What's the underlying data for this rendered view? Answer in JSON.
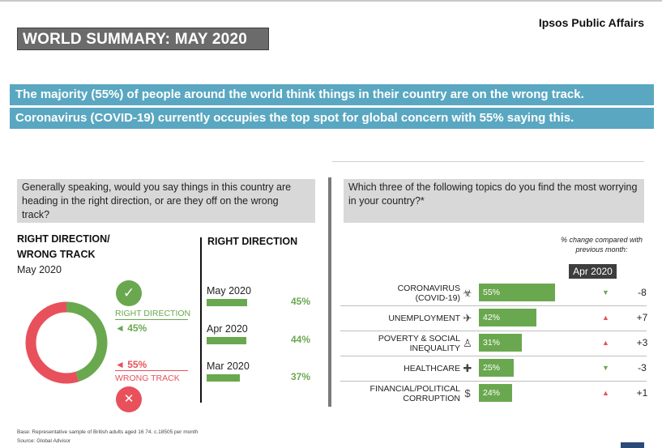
{
  "header": {
    "brand": "Ipsos Public Affairs",
    "title": "WORLD SUMMARY: MAY 2020"
  },
  "banners": {
    "line1": "The majority (55%) of people around the world think things in their country are on the wrong track.",
    "line2": "Coronavirus (COVID-19) currently occupies the top spot for global concern with 55% saying this."
  },
  "left_panel": {
    "question": "Generally speaking, would you say things in this country are heading in the right direction, or are they off on the wrong track?",
    "heading_line1": "RIGHT DIRECTION/",
    "heading_line2": "WRONG TRACK",
    "period": "May 2020",
    "right_direction_label": "RIGHT DIRECTION",
    "right_direction_value": "◄ 45%",
    "wrong_track_label": "WRONG TRACK",
    "wrong_track_value": "◄ 55%",
    "check_glyph": "✓",
    "x_glyph": "✕"
  },
  "trend": {
    "heading": "RIGHT DIRECTION",
    "rows": [
      {
        "month": "May 2020",
        "value": "45%"
      },
      {
        "month": "Apr 2020",
        "value": "44%"
      },
      {
        "month": "Mar 2020",
        "value": "37%"
      }
    ]
  },
  "right_panel": {
    "question": "Which three of the following topics do you find the most worrying in your country?*",
    "note": "% change compared with previous month:",
    "compare_label": "Apr 2020",
    "topics": [
      {
        "label": "CORONAVIRUS (COVID-19)",
        "icon": "biohazard-icon",
        "icon_glyph": "☣",
        "value": "55%",
        "direction": "down",
        "arrow": "▼",
        "change": "-8"
      },
      {
        "label": "UNEMPLOYMENT",
        "icon": "briefcase-icon",
        "icon_glyph": "✈",
        "value": "42%",
        "direction": "up",
        "arrow": "▲",
        "change": "+7"
      },
      {
        "label": "POVERTY & SOCIAL INEQUALITY",
        "icon": "person-icon",
        "icon_glyph": "♙",
        "value": "31%",
        "direction": "up",
        "arrow": "▲",
        "change": "+3"
      },
      {
        "label": "HEALTHCARE",
        "icon": "medical-cap-icon",
        "icon_glyph": "✚",
        "value": "25%",
        "direction": "down",
        "arrow": "▼",
        "change": "-3"
      },
      {
        "label": "FINANCIAL/POLITICAL CORRUPTION",
        "icon": "money-bag-icon",
        "icon_glyph": "$",
        "value": "24%",
        "direction": "up",
        "arrow": "▲",
        "change": "+1"
      }
    ]
  },
  "chart_data": [
    {
      "type": "pie",
      "title": "RIGHT DIRECTION/ WRONG TRACK",
      "subtitle": "May 2020",
      "categories": [
        "RIGHT DIRECTION",
        "WRONG TRACK"
      ],
      "values": [
        45,
        55
      ],
      "colors": [
        "#6aa84f",
        "#e8515b"
      ]
    },
    {
      "type": "bar",
      "title": "RIGHT DIRECTION",
      "categories": [
        "May 2020",
        "Apr 2020",
        "Mar 2020"
      ],
      "values": [
        45,
        44,
        37
      ],
      "color": "#6aa84f"
    },
    {
      "type": "bar",
      "categories": [
        "CORONAVIRUS (COVID-19)",
        "UNEMPLOYMENT",
        "POVERTY & SOCIAL INEQUALITY",
        "HEALTHCARE",
        "FINANCIAL/POLITICAL CORRUPTION"
      ],
      "values": [
        55,
        42,
        31,
        25,
        24
      ],
      "change_vs_apr_2020": [
        -8,
        7,
        3,
        -3,
        1
      ],
      "color": "#6aa84f"
    }
  ],
  "footer": {
    "base": "Base: Representative sample of British adults aged 16 74. c.18505 per month",
    "source": "Source: Global Advisor"
  },
  "colors": {
    "green": "#6aa84f",
    "red": "#e8515b",
    "banner": "#5aa7c1",
    "title_bg": "#6b6b6b"
  }
}
